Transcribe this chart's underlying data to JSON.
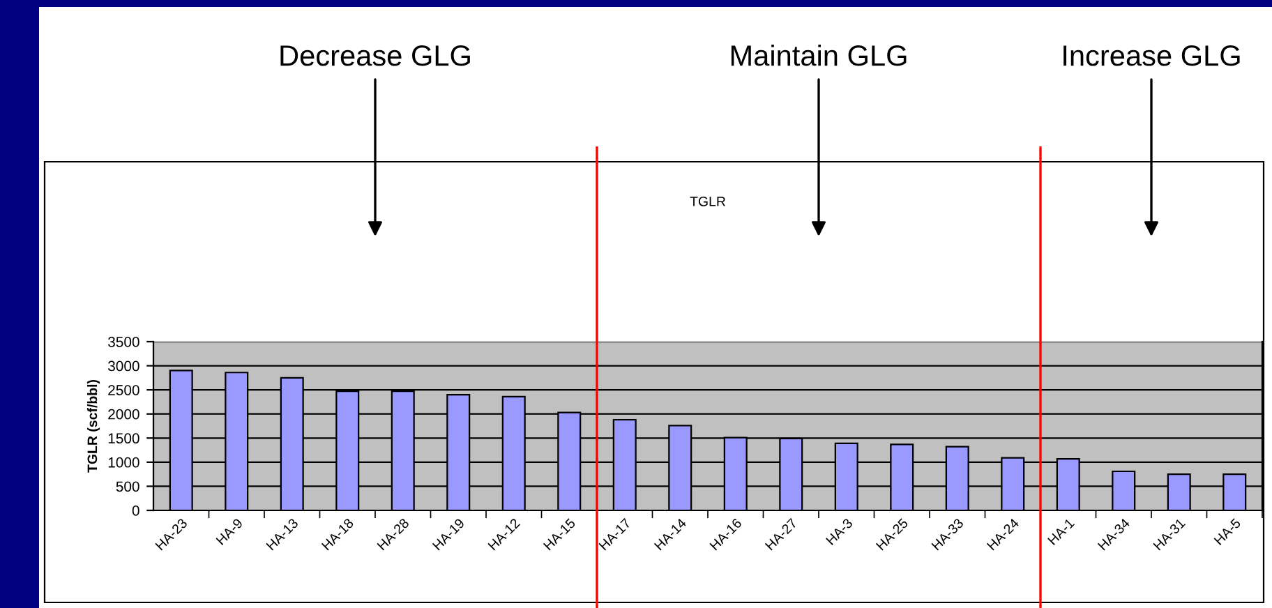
{
  "chart_data": {
    "type": "bar",
    "title": "TGLR",
    "ylabel": "TGLR (scf/bbl)",
    "categories": [
      "HA-23",
      "HA-9",
      "HA-13",
      "HA-18",
      "HA-28",
      "HA-19",
      "HA-12",
      "HA-15",
      "HA-17",
      "HA-14",
      "HA-16",
      "HA-27",
      "HA-3",
      "HA-25",
      "HA-33",
      "HA-24",
      "HA-1",
      "HA-34",
      "HA-31",
      "HA-5"
    ],
    "values": [
      2900,
      2860,
      2750,
      2470,
      2470,
      2400,
      2360,
      2030,
      1880,
      1760,
      1510,
      1490,
      1390,
      1370,
      1320,
      1090,
      1070,
      810,
      750,
      750
    ],
    "color": "#9999ff",
    "ylim": [
      0,
      3500
    ],
    "yticks": [
      0,
      500,
      1000,
      1500,
      2000,
      2500,
      3000,
      3500
    ],
    "grid": "y",
    "annotations": [
      "Decrease GLG",
      "Maintain GLG",
      "Increase GLG"
    ]
  }
}
